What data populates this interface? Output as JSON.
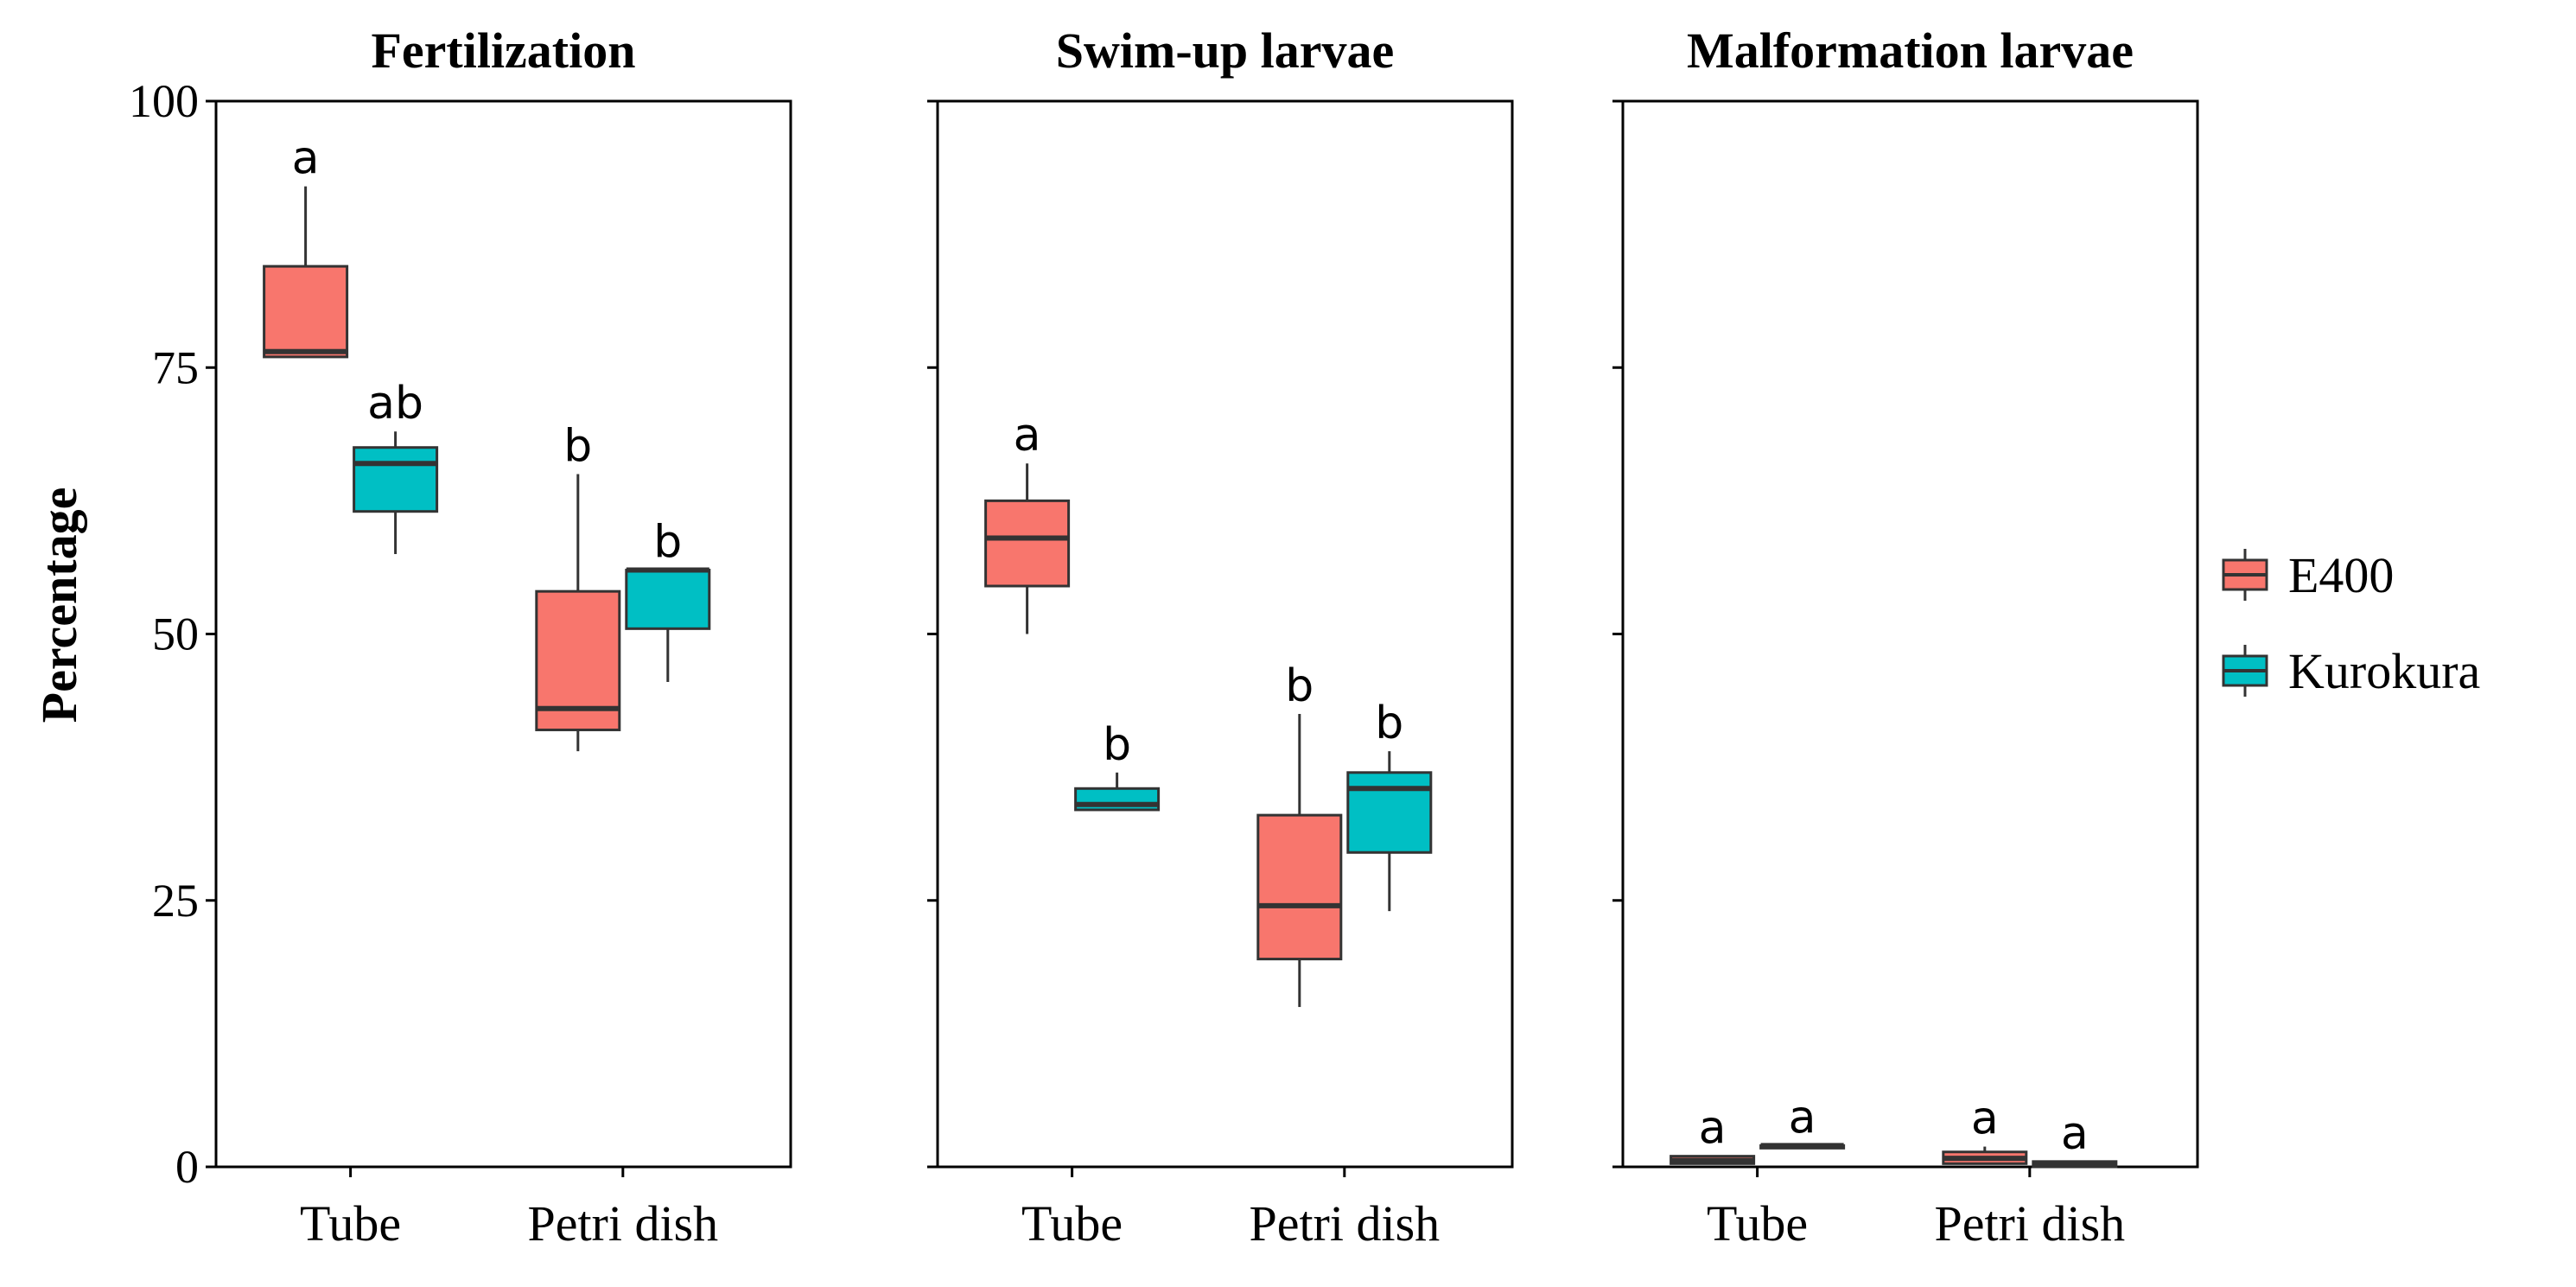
{
  "chart_data": {
    "type": "boxplot",
    "ylabel": "Percentage",
    "ylim": [
      0,
      100
    ],
    "yticks": [
      0,
      25,
      50,
      75,
      100
    ],
    "categories": [
      "Tube",
      "Petri dish"
    ],
    "legend": {
      "position": "right",
      "entries": [
        {
          "name": "E400",
          "color": "#F8766D"
        },
        {
          "name": "Kurokura",
          "color": "#00BFC4"
        }
      ]
    },
    "panels": [
      {
        "title": "Fertilization",
        "boxes": [
          {
            "category": "Tube",
            "series": "E400",
            "min": 76,
            "q1": 76,
            "median": 76.5,
            "q3": 84.5,
            "max": 92,
            "label": "a"
          },
          {
            "category": "Tube",
            "series": "Kurokura",
            "min": 57.5,
            "q1": 61.5,
            "median": 66,
            "q3": 67.5,
            "max": 69,
            "label": "ab"
          },
          {
            "category": "Petri dish",
            "series": "E400",
            "min": 39,
            "q1": 41,
            "median": 43,
            "q3": 54,
            "max": 65,
            "label": "b"
          },
          {
            "category": "Petri dish",
            "series": "Kurokura",
            "min": 45.5,
            "q1": 50.5,
            "median": 56,
            "q3": 56,
            "max": 56,
            "label": "b"
          }
        ]
      },
      {
        "title": "Swim-up larvae",
        "boxes": [
          {
            "category": "Tube",
            "series": "E400",
            "min": 50,
            "q1": 54.5,
            "median": 59,
            "q3": 62.5,
            "max": 66,
            "label": "a"
          },
          {
            "category": "Tube",
            "series": "Kurokura",
            "min": 33.5,
            "q1": 33.5,
            "median": 34,
            "q3": 35.5,
            "max": 37,
            "label": "b"
          },
          {
            "category": "Petri dish",
            "series": "E400",
            "min": 15,
            "q1": 19.5,
            "median": 24.5,
            "q3": 33,
            "max": 42.5,
            "label": "b"
          },
          {
            "category": "Petri dish",
            "series": "Kurokura",
            "min": 24,
            "q1": 29.5,
            "median": 35.5,
            "q3": 37,
            "max": 39,
            "label": "b"
          }
        ]
      },
      {
        "title": "Malformation larvae",
        "boxes": [
          {
            "category": "Tube",
            "series": "E400",
            "min": 0.3,
            "q1": 0.3,
            "median": 0.6,
            "q3": 1,
            "max": 1,
            "label": "a"
          },
          {
            "category": "Tube",
            "series": "Kurokura",
            "min": 2,
            "q1": 2,
            "median": 2,
            "q3": 2,
            "max": 2,
            "label": "a"
          },
          {
            "category": "Petri dish",
            "series": "E400",
            "min": 0.3,
            "q1": 0.3,
            "median": 0.8,
            "q3": 1.4,
            "max": 1.9,
            "label": "a"
          },
          {
            "category": "Petri dish",
            "series": "Kurokura",
            "min": 0,
            "q1": 0,
            "median": 0.2,
            "q3": 0.5,
            "max": 0.5,
            "label": "a"
          }
        ]
      }
    ]
  }
}
